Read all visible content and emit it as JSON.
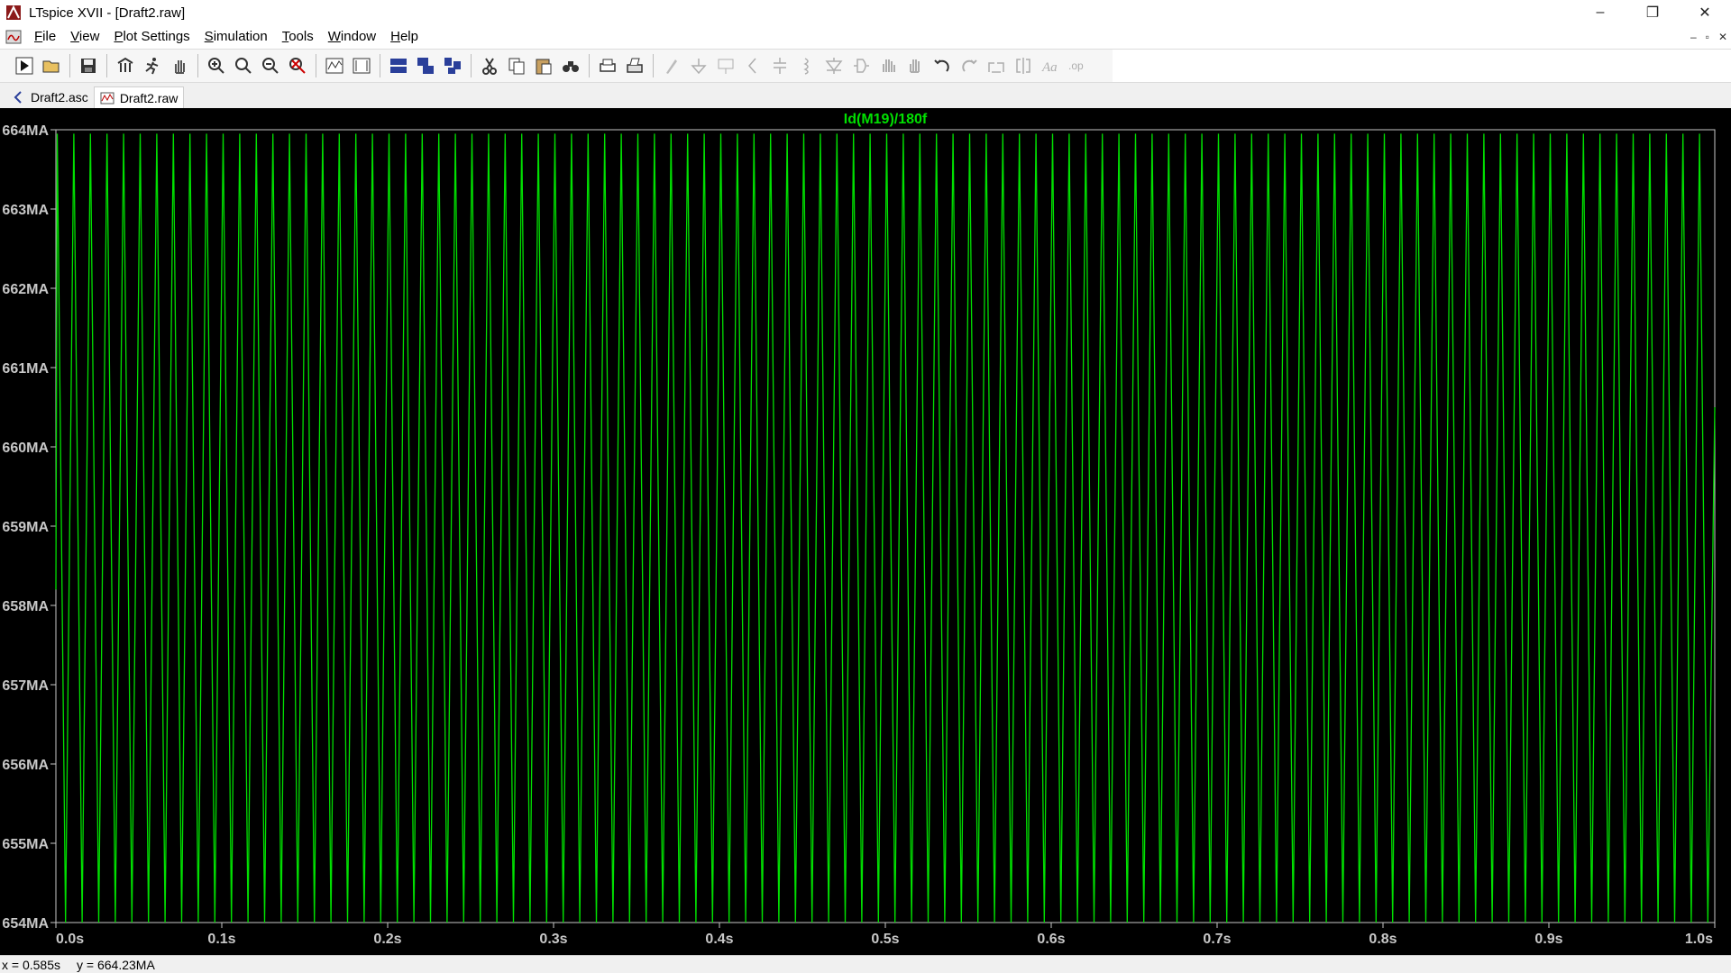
{
  "window": {
    "title": "LTspice XVII - [Draft2.raw]",
    "minimize": "–",
    "restore": "❐",
    "close": "✕"
  },
  "menu": [
    "File",
    "View",
    "Plot Settings",
    "Simulation",
    "Tools",
    "Window",
    "Help"
  ],
  "mdi": {
    "minimize": "–",
    "restore": "▫",
    "close": "✕"
  },
  "toolbar": [
    "run-icon",
    "open-icon",
    "save-icon",
    "control-panel-icon",
    "halt-icon",
    "pan-icon",
    "zoom-in-icon",
    "zoom-area-icon",
    "zoom-out-icon",
    "zoom-fit-icon",
    "autorange-icon",
    "plot-settings-icon",
    "tile-horizontal-icon",
    "cascade-icon",
    "tile-vertical-icon",
    "cut-icon",
    "copy-icon",
    "paste-icon",
    "find-icon",
    "print-icon",
    "print-setup-icon",
    "wire-icon",
    "ground-icon",
    "label-icon",
    "resistor-icon",
    "capacitor-icon",
    "inductor-icon",
    "diode-icon",
    "component-icon",
    "move-icon",
    "drag-icon",
    "undo-icon",
    "redo-icon",
    "rotate-icon",
    "mirror-icon",
    "text-icon",
    "spice-directive-icon"
  ],
  "tabs": [
    {
      "label": "Draft2.asc",
      "icon": "schematic-icon",
      "active": false
    },
    {
      "label": "Draft2.raw",
      "icon": "waveform-icon",
      "active": true
    }
  ],
  "chart_data": {
    "type": "line",
    "title": "Id(M19)/180f",
    "xlabel": "",
    "ylabel": "",
    "xlim": [
      0.0,
      1.0
    ],
    "ylim": [
      654,
      664
    ],
    "x_ticks": [
      "0.0s",
      "0.1s",
      "0.2s",
      "0.3s",
      "0.4s",
      "0.5s",
      "0.6s",
      "0.7s",
      "0.8s",
      "0.9s",
      "1.0s"
    ],
    "y_ticks": [
      "664MA",
      "663MA",
      "662MA",
      "661MA",
      "660MA",
      "659MA",
      "658MA",
      "657MA",
      "656MA",
      "655MA",
      "654MA"
    ],
    "grid": false,
    "series": [
      {
        "name": "Id(M19)/180f",
        "color": "#00e000",
        "waveform": "triangle",
        "cycles": 100,
        "min": 654.0,
        "max": 663.95,
        "start_value": 658.2,
        "end_value": 660.5
      }
    ]
  },
  "status": {
    "x": "x = 0.585s",
    "y": "y = 664.23MA"
  }
}
